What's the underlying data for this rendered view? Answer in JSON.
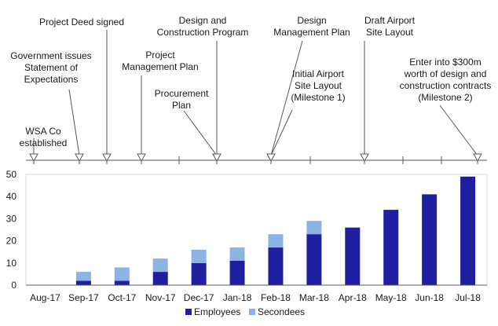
{
  "colors": {
    "employees": "#1f1fa0",
    "secondees": "#8db3e2",
    "line": "#595959",
    "text": "#1a1a1a"
  },
  "timeline": {
    "events": [
      {
        "lines": [
          "WSA Co",
          "established"
        ],
        "month": "Aug-17"
      },
      {
        "lines": [
          "Government issues",
          "Statement of",
          "Expectations"
        ],
        "month": "Sep-17"
      },
      {
        "lines": [
          "Project Deed signed"
        ],
        "month": "Oct-17"
      },
      {
        "lines": [
          "Project",
          "Management Plan"
        ],
        "month": "Nov-17"
      },
      {
        "lines": [
          "Procurement",
          "Plan"
        ],
        "month": "Jan-18"
      },
      {
        "lines": [
          "Design and",
          "Construction Program"
        ],
        "month": "Jan-18"
      },
      {
        "lines": [
          "Design",
          "Management Plan"
        ],
        "month": "Feb-18"
      },
      {
        "lines": [
          "Initial Airport",
          "Site Layout",
          "(Milestone 1)"
        ],
        "month": "Feb-18"
      },
      {
        "lines": [
          "Draft Airport",
          "Site Layout"
        ],
        "month": "Apr-18"
      },
      {
        "lines": [
          "Enter into $300m",
          "worth of design and",
          "construction contracts",
          "(Milestone 2)"
        ],
        "month": "Jul-18"
      }
    ]
  },
  "chart_data": {
    "type": "bar",
    "stacked": true,
    "categories": [
      "Aug-17",
      "Sep-17",
      "Oct-17",
      "Nov-17",
      "Dec-17",
      "Jan-18",
      "Feb-18",
      "Mar-18",
      "Apr-18",
      "May-18",
      "Jun-18",
      "Jul-18"
    ],
    "series": [
      {
        "name": "Employees",
        "values": [
          0,
          2,
          2,
          6,
          10,
          11,
          17,
          23,
          26,
          34,
          41,
          49
        ]
      },
      {
        "name": "Secondees",
        "values": [
          0,
          4,
          6,
          6,
          6,
          6,
          6,
          6,
          0,
          0,
          0,
          0
        ]
      }
    ],
    "ylim": [
      0,
      50
    ],
    "yticks": [
      0,
      10,
      20,
      30,
      40,
      50
    ],
    "grid": false,
    "legend": "bottom-center",
    "title": "",
    "xlabel": "",
    "ylabel": ""
  }
}
